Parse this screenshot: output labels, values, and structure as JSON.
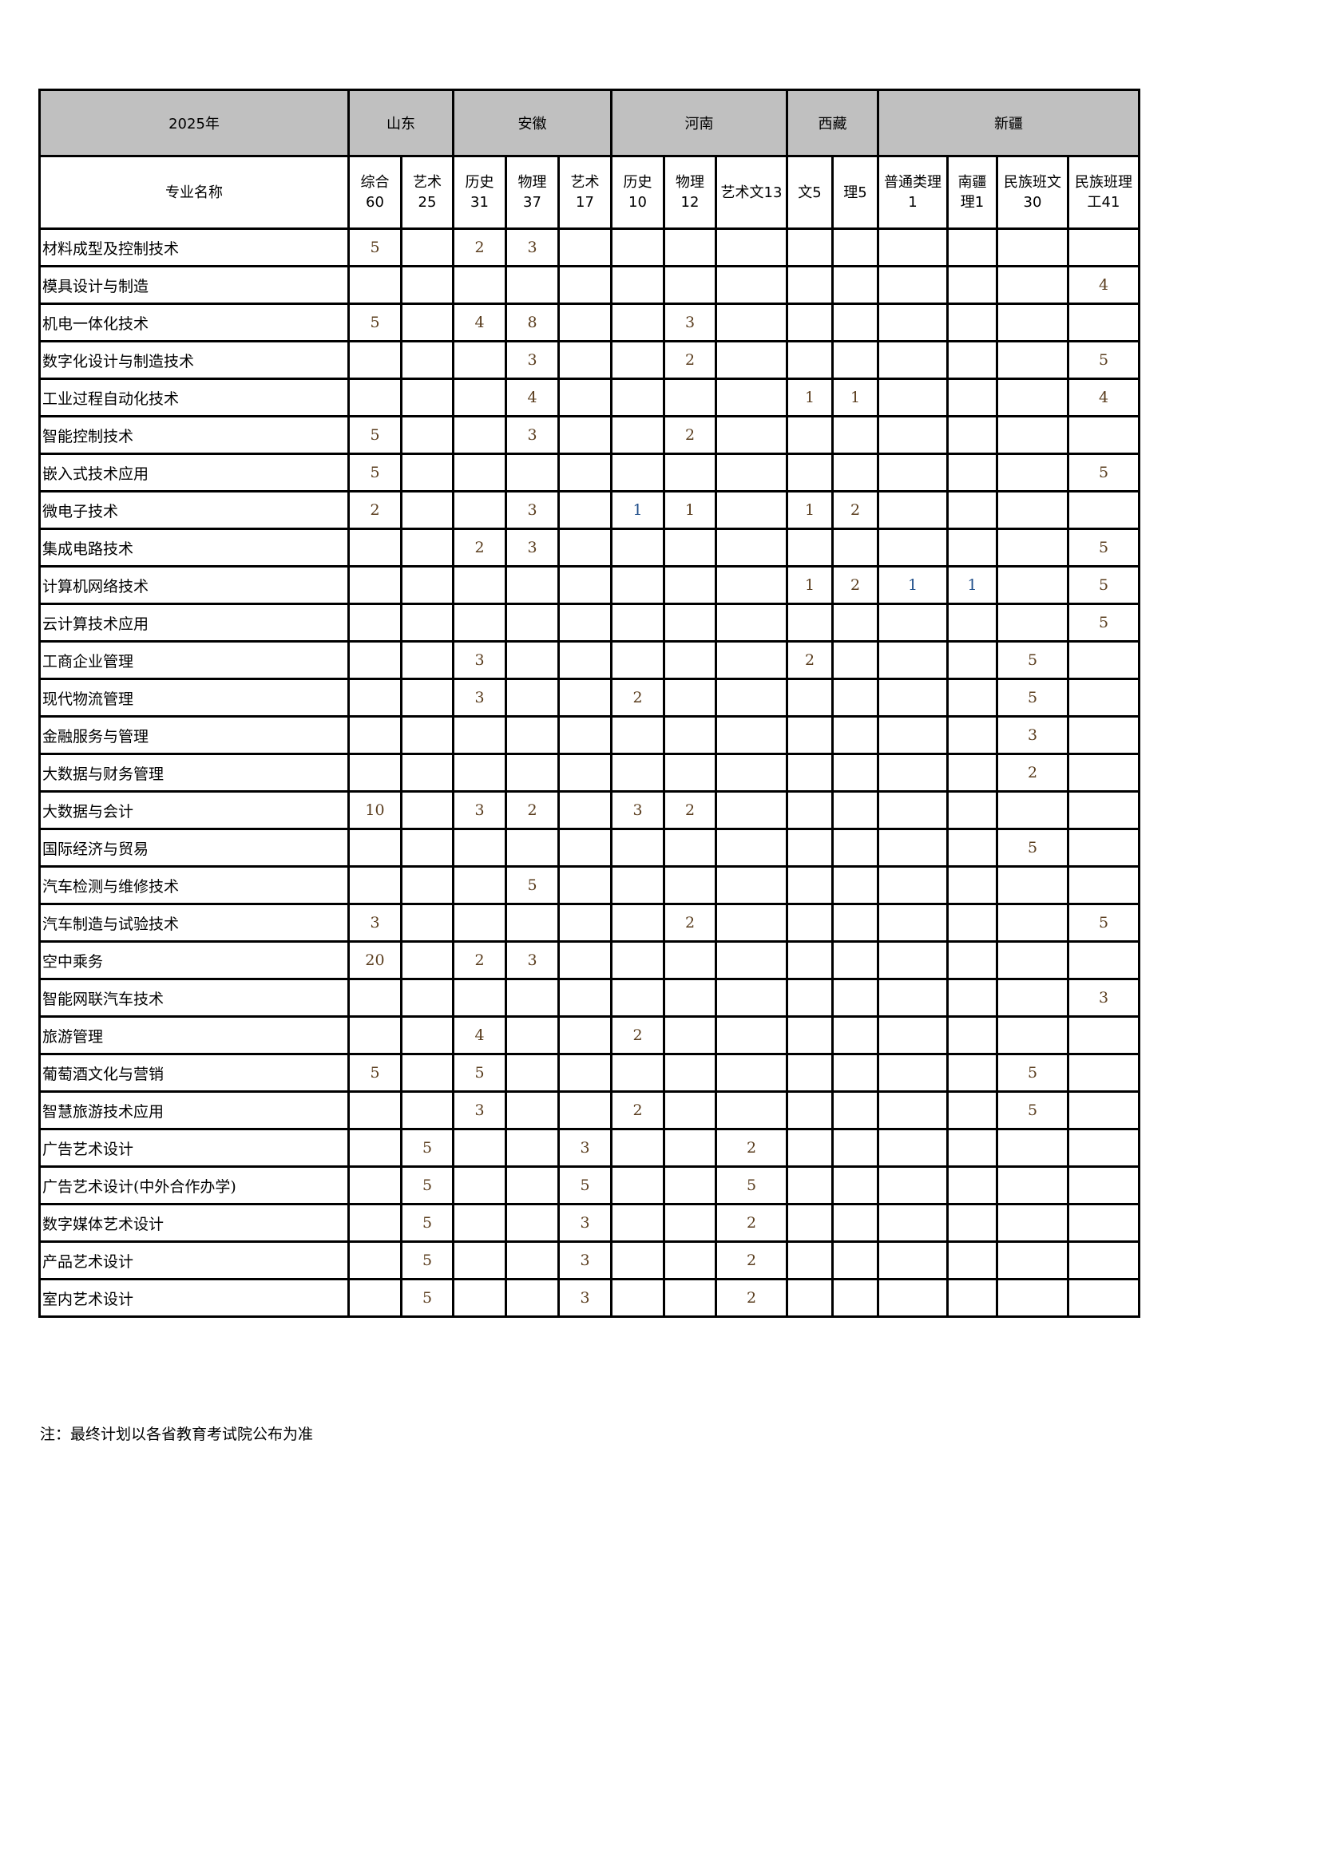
{
  "header": {
    "year": "2025年",
    "provinces": [
      {
        "name": "山东",
        "span": 2
      },
      {
        "name": "安徽",
        "span": 3
      },
      {
        "name": "河南",
        "span": 3
      },
      {
        "name": "西藏",
        "span": 2
      },
      {
        "name": "新疆",
        "span": 4
      }
    ],
    "name_col": "专业名称",
    "subcols": [
      "综合\n60",
      "艺术\n25",
      "历史\n31",
      "物理\n37",
      "艺术\n17",
      "历史\n10",
      "物理\n12",
      "艺术文13",
      "文5",
      "理5",
      "普通类理\n1",
      "南疆\n理1",
      "民族班文\n30",
      "民族班理\n工41"
    ]
  },
  "rows": [
    {
      "name": "材料成型及控制技术",
      "v": [
        "5",
        "",
        "2",
        "3",
        "",
        "",
        "",
        "",
        "",
        "",
        "",
        "",
        "",
        ""
      ]
    },
    {
      "name": "模具设计与制造",
      "v": [
        "",
        "",
        "",
        "",
        "",
        "",
        "",
        "",
        "",
        "",
        "",
        "",
        "",
        "4"
      ]
    },
    {
      "name": "机电一体化技术",
      "v": [
        "5",
        "",
        "4",
        "8",
        "",
        "",
        "3",
        "",
        "",
        "",
        "",
        "",
        "",
        ""
      ]
    },
    {
      "name": "数字化设计与制造技术",
      "v": [
        "",
        "",
        "",
        "3",
        "",
        "",
        "2",
        "",
        "",
        "",
        "",
        "",
        "",
        "5"
      ]
    },
    {
      "name": "工业过程自动化技术",
      "v": [
        "",
        "",
        "",
        "4",
        "",
        "",
        "",
        "",
        "1",
        "1",
        "",
        "",
        "",
        "4"
      ]
    },
    {
      "name": "智能控制技术",
      "v": [
        "5",
        "",
        "",
        "3",
        "",
        "",
        "2",
        "",
        "",
        "",
        "",
        "",
        "",
        ""
      ]
    },
    {
      "name": "嵌入式技术应用",
      "v": [
        "5",
        "",
        "",
        "",
        "",
        "",
        "",
        "",
        "",
        "",
        "",
        "",
        "",
        "5"
      ]
    },
    {
      "name": "微电子技术",
      "v": [
        "2",
        "",
        "",
        "3",
        "",
        "1",
        "1",
        "",
        "1",
        "2",
        "",
        "",
        "",
        ""
      ]
    },
    {
      "name": "集成电路技术",
      "v": [
        "",
        "",
        "2",
        "3",
        "",
        "",
        "",
        "",
        "",
        "",
        "",
        "",
        "",
        "5"
      ]
    },
    {
      "name": "计算机网络技术",
      "v": [
        "",
        "",
        "",
        "",
        "",
        "",
        "",
        "",
        "1",
        "2",
        "1",
        "1",
        "",
        "5"
      ]
    },
    {
      "name": "云计算技术应用",
      "v": [
        "",
        "",
        "",
        "",
        "",
        "",
        "",
        "",
        "",
        "",
        "",
        "",
        "",
        "5"
      ]
    },
    {
      "name": "工商企业管理",
      "v": [
        "",
        "",
        "3",
        "",
        "",
        "",
        "",
        "",
        "2",
        "",
        "",
        "",
        "5",
        ""
      ]
    },
    {
      "name": "现代物流管理",
      "v": [
        "",
        "",
        "3",
        "",
        "",
        "2",
        "",
        "",
        "",
        "",
        "",
        "",
        "5",
        ""
      ]
    },
    {
      "name": "金融服务与管理",
      "v": [
        "",
        "",
        "",
        "",
        "",
        "",
        "",
        "",
        "",
        "",
        "",
        "",
        "3",
        ""
      ]
    },
    {
      "name": "大数据与财务管理",
      "v": [
        "",
        "",
        "",
        "",
        "",
        "",
        "",
        "",
        "",
        "",
        "",
        "",
        "2",
        ""
      ]
    },
    {
      "name": "大数据与会计",
      "v": [
        "10",
        "",
        "3",
        "2",
        "",
        "3",
        "2",
        "",
        "",
        "",
        "",
        "",
        "",
        ""
      ]
    },
    {
      "name": "国际经济与贸易",
      "v": [
        "",
        "",
        "",
        "",
        "",
        "",
        "",
        "",
        "",
        "",
        "",
        "",
        "5",
        ""
      ]
    },
    {
      "name": "汽车检测与维修技术",
      "v": [
        "",
        "",
        "",
        "5",
        "",
        "",
        "",
        "",
        "",
        "",
        "",
        "",
        "",
        ""
      ]
    },
    {
      "name": "汽车制造与试验技术",
      "v": [
        "3",
        "",
        "",
        "",
        "",
        "",
        "2",
        "",
        "",
        "",
        "",
        "",
        "",
        "5"
      ]
    },
    {
      "name": "空中乘务",
      "v": [
        "20",
        "",
        "2",
        "3",
        "",
        "",
        "",
        "",
        "",
        "",
        "",
        "",
        "",
        ""
      ]
    },
    {
      "name": "智能网联汽车技术",
      "v": [
        "",
        "",
        "",
        "",
        "",
        "",
        "",
        "",
        "",
        "",
        "",
        "",
        "",
        "3"
      ]
    },
    {
      "name": "旅游管理",
      "v": [
        "",
        "",
        "4",
        "",
        "",
        "2",
        "",
        "",
        "",
        "",
        "",
        "",
        "",
        ""
      ]
    },
    {
      "name": "葡萄酒文化与营销",
      "v": [
        "5",
        "",
        "5",
        "",
        "",
        "",
        "",
        "",
        "",
        "",
        "",
        "",
        "5",
        ""
      ]
    },
    {
      "name": "智慧旅游技术应用",
      "v": [
        "",
        "",
        "3",
        "",
        "",
        "2",
        "",
        "",
        "",
        "",
        "",
        "",
        "5",
        ""
      ]
    },
    {
      "name": "广告艺术设计",
      "v": [
        "",
        "5",
        "",
        "",
        "3",
        "",
        "",
        "2",
        "",
        "",
        "",
        "",
        "",
        ""
      ]
    },
    {
      "name": "广告艺术设计(中外合作办学)",
      "v": [
        "",
        "5",
        "",
        "",
        "5",
        "",
        "",
        "5",
        "",
        "",
        "",
        "",
        "",
        ""
      ]
    },
    {
      "name": "数字媒体艺术设计",
      "v": [
        "",
        "5",
        "",
        "",
        "3",
        "",
        "",
        "2",
        "",
        "",
        "",
        "",
        "",
        ""
      ]
    },
    {
      "name": "产品艺术设计",
      "v": [
        "",
        "5",
        "",
        "",
        "3",
        "",
        "",
        "2",
        "",
        "",
        "",
        "",
        "",
        ""
      ]
    },
    {
      "name": "室内艺术设计",
      "v": [
        "",
        "5",
        "",
        "",
        "3",
        "",
        "",
        "2",
        "",
        "",
        "",
        "",
        "",
        ""
      ]
    }
  ],
  "note": "注：最终计划以各省教育考试院公布为准"
}
